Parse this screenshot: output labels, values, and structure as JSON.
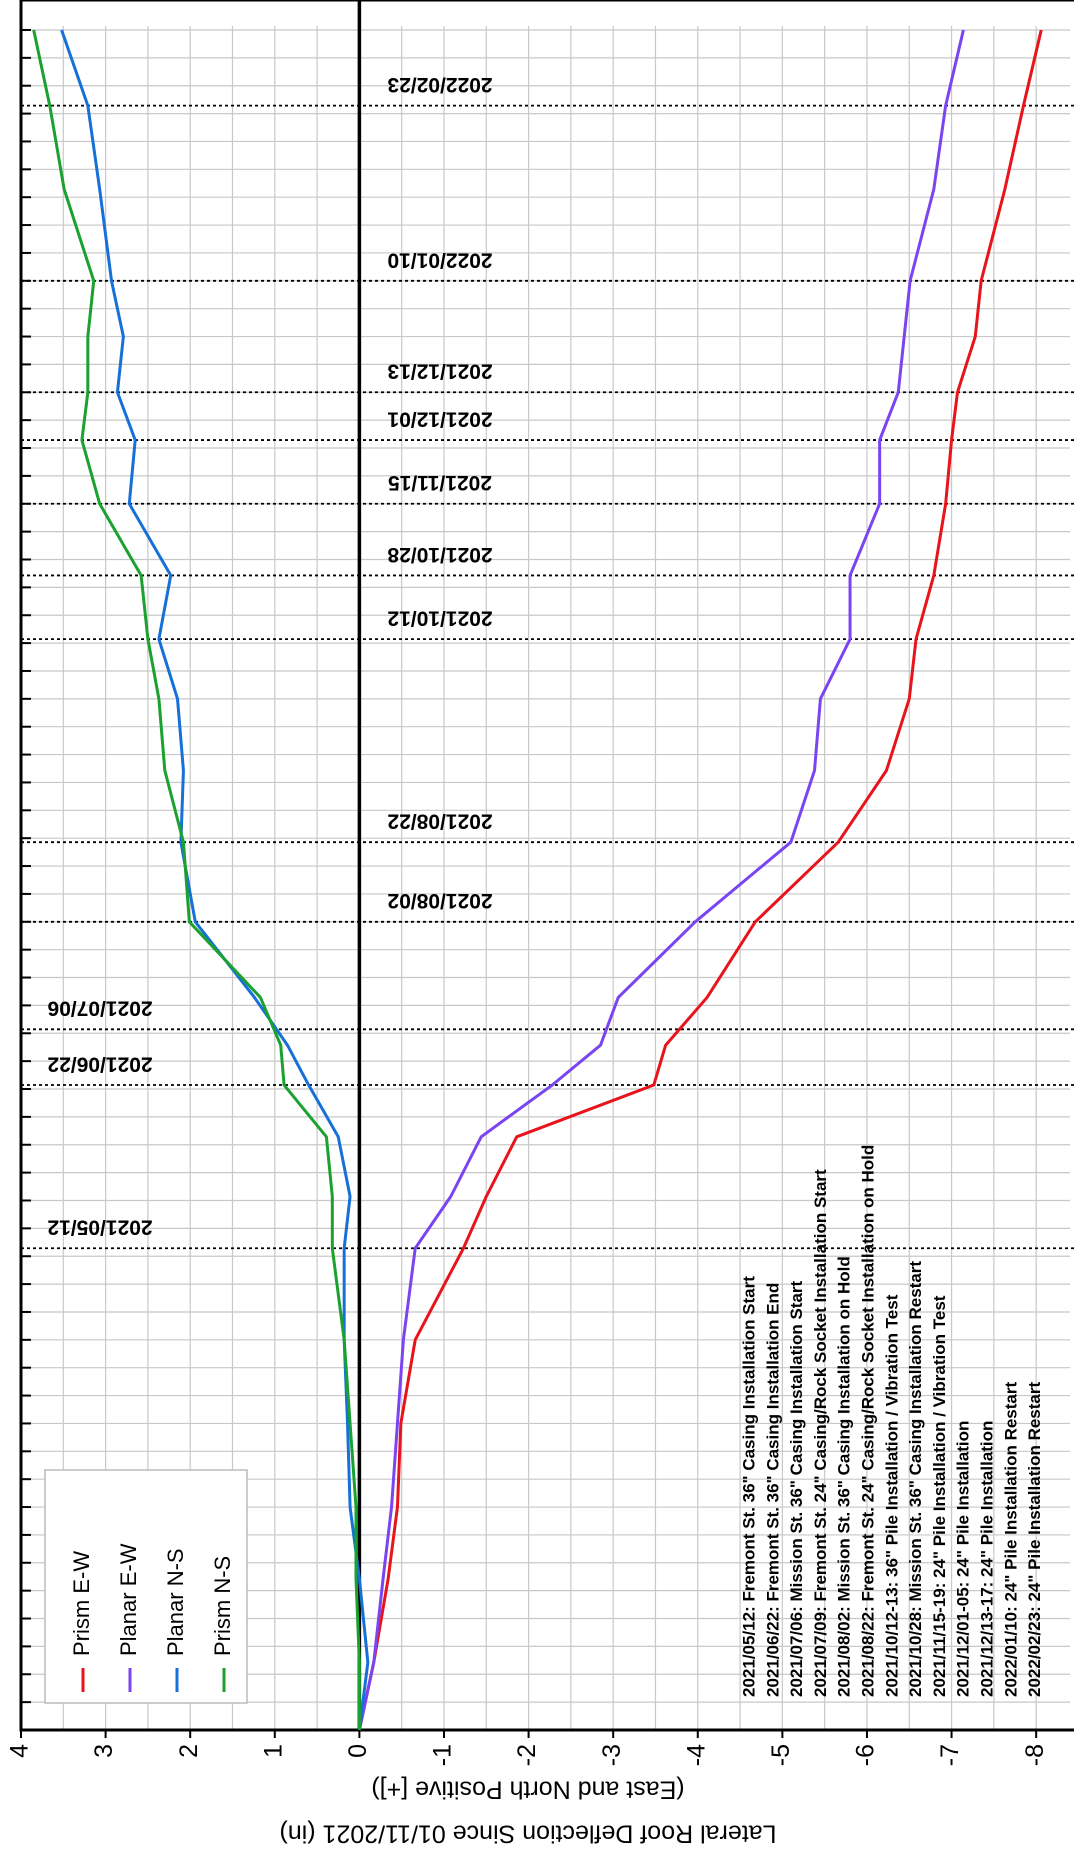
{
  "chart_data": {
    "type": "line",
    "title_lines": [
      "Lateral Roof Deflection Since 01/11/2021 (in)",
      "(East and North Positive [+])"
    ],
    "x": [
      "2021-01-11",
      "2021-01-28",
      "2021-02-18",
      "2021-03-08",
      "2021-03-29",
      "2021-04-19",
      "2021-05-12",
      "2021-05-25",
      "2021-06-09",
      "2021-06-22",
      "2021-07-02",
      "2021-07-14",
      "2021-08-02",
      "2021-08-22",
      "2021-09-09",
      "2021-09-27",
      "2021-10-12",
      "2021-10-28",
      "2021-11-15",
      "2021-12-01",
      "2021-12-13",
      "2021-12-27",
      "2022-01-10",
      "2022-02-02",
      "2022-02-23",
      "2022-03-14"
    ],
    "xlim": [
      "2021-01-11",
      "2022-03-15"
    ],
    "ylim": [
      -8.4,
      4
    ],
    "yticks": [
      -8,
      -7,
      -6,
      -5,
      -4,
      -3,
      -2,
      -1,
      0,
      1,
      2,
      3,
      4
    ],
    "grid": true,
    "legend": "top-left",
    "series": [
      {
        "name": "Prism E-W",
        "color": "#e8141b",
        "values": [
          0,
          -0.17,
          -0.34,
          -0.45,
          -0.49,
          -0.66,
          -1.23,
          -1.5,
          -1.86,
          -3.48,
          -3.62,
          -4.11,
          -4.68,
          -5.66,
          -6.23,
          -6.5,
          -6.58,
          -6.79,
          -6.93,
          -7.0,
          -7.07,
          -7.28,
          -7.35,
          -7.63,
          -7.85,
          -8.06
        ]
      },
      {
        "name": "Planar E-W",
        "color": "#7a45f0",
        "values": [
          0,
          -0.17,
          -0.28,
          -0.38,
          -0.45,
          -0.52,
          -0.66,
          -1.08,
          -1.44,
          -2.28,
          -2.85,
          -3.06,
          -3.97,
          -5.1,
          -5.38,
          -5.45,
          -5.8,
          -5.8,
          -6.15,
          -6.15,
          -6.37,
          -6.44,
          -6.51,
          -6.79,
          -6.93,
          -7.14
        ]
      },
      {
        "name": "Planar N-S",
        "color": "#1670d8",
        "values": [
          0,
          -0.1,
          0,
          0.11,
          0.14,
          0.18,
          0.18,
          0.11,
          0.25,
          0.6,
          0.85,
          1.24,
          1.94,
          2.11,
          2.08,
          2.15,
          2.37,
          2.23,
          2.72,
          2.65,
          2.86,
          2.79,
          2.93,
          3.07,
          3.21,
          3.52
        ]
      },
      {
        "name": "Prism N-S",
        "color": "#1aa130",
        "values": [
          0,
          0,
          0.04,
          0.04,
          0.11,
          0.18,
          0.32,
          0.32,
          0.39,
          0.89,
          0.93,
          1.17,
          2.01,
          2.08,
          2.3,
          2.37,
          2.5,
          2.58,
          3.07,
          3.28,
          3.21,
          3.21,
          3.14,
          3.49,
          3.66,
          3.85
        ]
      }
    ],
    "events": [
      "2021/05/12",
      "2021/06/22",
      "2021/07/06",
      "2021/08/02",
      "2021/08/22",
      "2021/10/12",
      "2021/10/28",
      "2021/11/15",
      "2021/12/01",
      "2021/12/13",
      "2022/01/10",
      "2022/02/23"
    ],
    "notes": [
      "2021/05/12: Fremont St. 36\" Casing Installation Start",
      "2021/06/22: Fremont St. 36\" Casing Installation End",
      "2021/07/06: Mission St. 36\" Casing Installation Start",
      "2021/07/09: Fremont St. 24\" Casing/Rock Socket Installation Start",
      "2021/08/02: Mission St. 36\" Casing Installation on Hold",
      "2021/08/22: Fremont St. 24\" Casing/Rock Socket Installation on Hold",
      "2021/10/12-13: 36\" Pile Installation / Vibration Test",
      "2021/10/28: Mission St. 36\" Casing Installation Restart",
      "2021/11/15-19: 24\" Pile Installation / Vibration Test",
      "2021/12/01-05: 24\" Pile Installation",
      "2021/12/13-17: 24\" Pile Installation",
      "2022/01/10: 24\" Pile Installation Restart",
      "2022/02/23: 24\" Pile Installation Restart"
    ]
  }
}
